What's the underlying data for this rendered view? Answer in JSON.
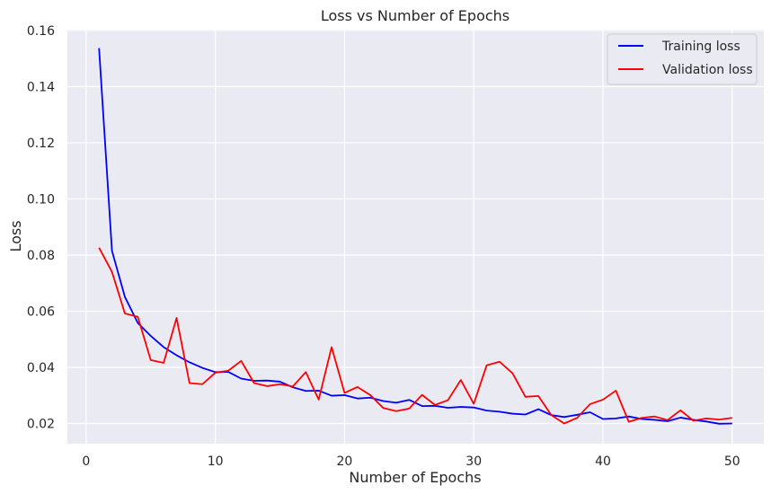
{
  "chart_data": {
    "type": "line",
    "title": "Loss vs Number of Epochs",
    "xlabel": "Number of Epochs",
    "ylabel": "Loss",
    "xlim": [
      -1.45,
      52.45
    ],
    "ylim": [
      0.0128,
      0.1603
    ],
    "xticks": [
      0,
      10,
      20,
      30,
      40,
      50
    ],
    "yticks": [
      0.02,
      0.04,
      0.06,
      0.08,
      0.1,
      0.12,
      0.14,
      0.16
    ],
    "ytick_labels": [
      "0.02",
      "0.04",
      "0.06",
      "0.08",
      "0.10",
      "0.12",
      "0.14",
      "0.16"
    ],
    "grid": true,
    "legend_position": "top-right",
    "x": [
      1,
      2,
      3,
      4,
      5,
      6,
      7,
      8,
      9,
      10,
      11,
      12,
      13,
      14,
      15,
      16,
      17,
      18,
      19,
      20,
      21,
      22,
      23,
      24,
      25,
      26,
      27,
      28,
      29,
      30,
      31,
      32,
      33,
      34,
      35,
      36,
      37,
      38,
      39,
      40,
      41,
      42,
      43,
      44,
      45,
      46,
      47,
      48,
      49,
      50
    ],
    "series": [
      {
        "name": "Training loss",
        "color": "#0000ff",
        "values": [
          0.1537,
          0.0815,
          0.0651,
          0.0558,
          0.0512,
          0.0472,
          0.0443,
          0.0418,
          0.0398,
          0.0383,
          0.0384,
          0.036,
          0.0352,
          0.0353,
          0.0349,
          0.0329,
          0.0316,
          0.0317,
          0.0299,
          0.0301,
          0.0289,
          0.0292,
          0.028,
          0.0274,
          0.0284,
          0.0262,
          0.0263,
          0.0256,
          0.0259,
          0.0257,
          0.0246,
          0.0242,
          0.0235,
          0.0232,
          0.0251,
          0.023,
          0.0223,
          0.0231,
          0.024,
          0.0216,
          0.0218,
          0.0225,
          0.0216,
          0.0213,
          0.0208,
          0.0221,
          0.0213,
          0.0207,
          0.0199,
          0.02
        ]
      },
      {
        "name": "Validation loss",
        "color": "#ff0000",
        "values": [
          0.0826,
          0.074,
          0.0592,
          0.058,
          0.0426,
          0.0416,
          0.0576,
          0.0344,
          0.034,
          0.0381,
          0.0388,
          0.0423,
          0.0344,
          0.0333,
          0.034,
          0.0332,
          0.0383,
          0.0285,
          0.0472,
          0.0309,
          0.033,
          0.0301,
          0.0255,
          0.0244,
          0.0253,
          0.0302,
          0.0266,
          0.0283,
          0.0355,
          0.027,
          0.0407,
          0.042,
          0.0379,
          0.0295,
          0.0298,
          0.023,
          0.02,
          0.022,
          0.0269,
          0.0285,
          0.0317,
          0.0206,
          0.022,
          0.0225,
          0.0212,
          0.0247,
          0.021,
          0.0218,
          0.0214,
          0.022
        ]
      }
    ]
  }
}
